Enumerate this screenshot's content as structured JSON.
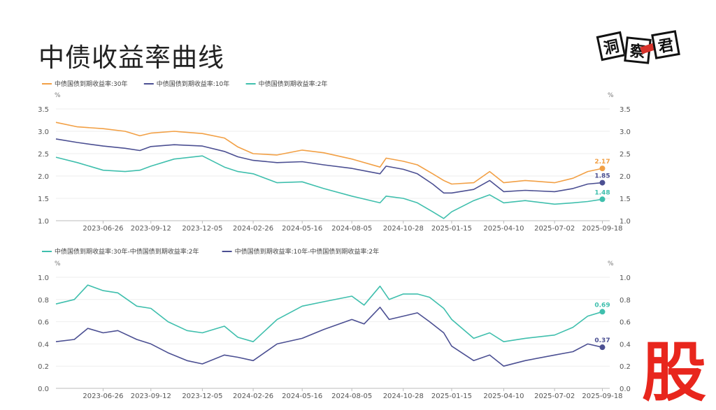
{
  "page": {
    "title": "中债收益率曲线",
    "logo_text": [
      "洞",
      "察",
      "君"
    ],
    "corner_mark": "股"
  },
  "colors": {
    "y30": "#f2a045",
    "y10": "#4b4f92",
    "y2": "#3fbfad",
    "spread30": "#3fbfad",
    "spread10": "#4b4f92"
  },
  "chart_data": [
    {
      "type": "line",
      "title": "",
      "unit_left": "%",
      "unit_right": "%",
      "ylim": [
        1.0,
        3.5
      ],
      "yticks": [
        "1.0",
        "1.5",
        "2.0",
        "2.5",
        "3.0",
        "3.5"
      ],
      "xlim": [
        "2023-04-10",
        "2025-09-30"
      ],
      "xticks": [
        "2023-06-26",
        "2023-09-12",
        "2023-12-05",
        "2024-02-26",
        "2024-05-16",
        "2024-08-05",
        "2024-10-28",
        "2025-01-15",
        "2025-04-10",
        "2025-07-02",
        "2025-09-18"
      ],
      "legend_position": "top-left",
      "grid": true,
      "series": [
        {
          "name": "中债国债到期收益率:30年",
          "color_key": "y30",
          "end_label": "2.17",
          "points": [
            [
              "2023-04-10",
              3.2
            ],
            [
              "2023-05-15",
              3.1
            ],
            [
              "2023-06-26",
              3.06
            ],
            [
              "2023-08-01",
              3.0
            ],
            [
              "2023-08-25",
              2.9
            ],
            [
              "2023-09-12",
              2.96
            ],
            [
              "2023-10-20",
              3.0
            ],
            [
              "2023-12-05",
              2.95
            ],
            [
              "2024-01-10",
              2.85
            ],
            [
              "2024-02-01",
              2.65
            ],
            [
              "2024-02-26",
              2.5
            ],
            [
              "2024-04-05",
              2.47
            ],
            [
              "2024-05-16",
              2.58
            ],
            [
              "2024-06-20",
              2.52
            ],
            [
              "2024-08-05",
              2.38
            ],
            [
              "2024-09-20",
              2.2
            ],
            [
              "2024-09-30",
              2.4
            ],
            [
              "2024-10-28",
              2.33
            ],
            [
              "2024-11-20",
              2.25
            ],
            [
              "2024-12-15",
              2.05
            ],
            [
              "2025-01-02",
              1.9
            ],
            [
              "2025-01-15",
              1.82
            ],
            [
              "2025-02-20",
              1.85
            ],
            [
              "2025-03-18",
              2.1
            ],
            [
              "2025-04-10",
              1.85
            ],
            [
              "2025-05-15",
              1.9
            ],
            [
              "2025-07-02",
              1.85
            ],
            [
              "2025-08-01",
              1.95
            ],
            [
              "2025-08-25",
              2.1
            ],
            [
              "2025-09-18",
              2.17
            ]
          ]
        },
        {
          "name": "中债国债到期收益率:10年",
          "color_key": "y10",
          "end_label": "1.85",
          "points": [
            [
              "2023-04-10",
              2.83
            ],
            [
              "2023-05-15",
              2.75
            ],
            [
              "2023-06-26",
              2.67
            ],
            [
              "2023-08-01",
              2.62
            ],
            [
              "2023-08-25",
              2.57
            ],
            [
              "2023-09-12",
              2.66
            ],
            [
              "2023-10-20",
              2.7
            ],
            [
              "2023-12-05",
              2.67
            ],
            [
              "2024-01-10",
              2.55
            ],
            [
              "2024-02-01",
              2.43
            ],
            [
              "2024-02-26",
              2.35
            ],
            [
              "2024-04-05",
              2.3
            ],
            [
              "2024-05-16",
              2.32
            ],
            [
              "2024-06-20",
              2.25
            ],
            [
              "2024-08-05",
              2.17
            ],
            [
              "2024-09-20",
              2.05
            ],
            [
              "2024-09-30",
              2.22
            ],
            [
              "2024-10-28",
              2.15
            ],
            [
              "2024-11-20",
              2.05
            ],
            [
              "2024-12-15",
              1.82
            ],
            [
              "2025-01-02",
              1.62
            ],
            [
              "2025-01-15",
              1.62
            ],
            [
              "2025-02-20",
              1.7
            ],
            [
              "2025-03-18",
              1.9
            ],
            [
              "2025-04-10",
              1.65
            ],
            [
              "2025-05-15",
              1.68
            ],
            [
              "2025-07-02",
              1.65
            ],
            [
              "2025-08-01",
              1.72
            ],
            [
              "2025-08-25",
              1.82
            ],
            [
              "2025-09-18",
              1.85
            ]
          ]
        },
        {
          "name": "中债国债到期收益率:2年",
          "color_key": "y2",
          "end_label": "1.48",
          "points": [
            [
              "2023-04-10",
              2.42
            ],
            [
              "2023-05-15",
              2.3
            ],
            [
              "2023-06-26",
              2.13
            ],
            [
              "2023-08-01",
              2.1
            ],
            [
              "2023-08-25",
              2.13
            ],
            [
              "2023-09-12",
              2.22
            ],
            [
              "2023-10-20",
              2.38
            ],
            [
              "2023-12-05",
              2.45
            ],
            [
              "2024-01-10",
              2.2
            ],
            [
              "2024-02-01",
              2.1
            ],
            [
              "2024-02-26",
              2.05
            ],
            [
              "2024-04-05",
              1.85
            ],
            [
              "2024-05-16",
              1.87
            ],
            [
              "2024-06-20",
              1.72
            ],
            [
              "2024-08-05",
              1.55
            ],
            [
              "2024-09-20",
              1.4
            ],
            [
              "2024-09-30",
              1.55
            ],
            [
              "2024-10-28",
              1.5
            ],
            [
              "2024-11-20",
              1.4
            ],
            [
              "2024-12-15",
              1.2
            ],
            [
              "2025-01-02",
              1.05
            ],
            [
              "2025-01-15",
              1.2
            ],
            [
              "2025-02-20",
              1.45
            ],
            [
              "2025-03-18",
              1.58
            ],
            [
              "2025-04-10",
              1.4
            ],
            [
              "2025-05-15",
              1.45
            ],
            [
              "2025-07-02",
              1.37
            ],
            [
              "2025-08-01",
              1.4
            ],
            [
              "2025-08-25",
              1.43
            ],
            [
              "2025-09-18",
              1.48
            ]
          ]
        }
      ]
    },
    {
      "type": "line",
      "title": "",
      "unit_left": "%",
      "unit_right": "%",
      "ylim": [
        0.0,
        1.0
      ],
      "yticks": [
        "0.0",
        "0.2",
        "0.4",
        "0.6",
        "0.8",
        "1.0"
      ],
      "xlim": [
        "2023-04-10",
        "2025-09-30"
      ],
      "xticks": [
        "2023-06-26",
        "2023-09-12",
        "2023-12-05",
        "2024-02-26",
        "2024-05-16",
        "2024-08-05",
        "2024-10-28",
        "2025-01-15",
        "2025-04-10",
        "2025-07-02",
        "2025-09-18"
      ],
      "legend_position": "top-left",
      "grid": true,
      "series": [
        {
          "name": "中债国债到期收益率:30年-中债国债到期收益率:2年",
          "color_key": "spread30",
          "end_label": "0.69",
          "points": [
            [
              "2023-04-10",
              0.76
            ],
            [
              "2023-05-10",
              0.8
            ],
            [
              "2023-06-01",
              0.93
            ],
            [
              "2023-06-26",
              0.88
            ],
            [
              "2023-07-20",
              0.86
            ],
            [
              "2023-08-20",
              0.74
            ],
            [
              "2023-09-12",
              0.72
            ],
            [
              "2023-10-10",
              0.6
            ],
            [
              "2023-11-10",
              0.52
            ],
            [
              "2023-12-05",
              0.5
            ],
            [
              "2024-01-10",
              0.56
            ],
            [
              "2024-02-01",
              0.46
            ],
            [
              "2024-02-26",
              0.42
            ],
            [
              "2024-04-05",
              0.62
            ],
            [
              "2024-05-16",
              0.74
            ],
            [
              "2024-06-20",
              0.78
            ],
            [
              "2024-08-05",
              0.83
            ],
            [
              "2024-08-25",
              0.75
            ],
            [
              "2024-09-20",
              0.92
            ],
            [
              "2024-10-05",
              0.8
            ],
            [
              "2024-10-28",
              0.85
            ],
            [
              "2024-11-20",
              0.85
            ],
            [
              "2024-12-10",
              0.82
            ],
            [
              "2025-01-02",
              0.72
            ],
            [
              "2025-01-15",
              0.62
            ],
            [
              "2025-02-20",
              0.45
            ],
            [
              "2025-03-18",
              0.5
            ],
            [
              "2025-04-10",
              0.42
            ],
            [
              "2025-05-15",
              0.45
            ],
            [
              "2025-07-02",
              0.48
            ],
            [
              "2025-08-01",
              0.55
            ],
            [
              "2025-08-25",
              0.65
            ],
            [
              "2025-09-18",
              0.69
            ]
          ]
        },
        {
          "name": "中债国债到期收益率:10年-中债国债到期收益率:2年",
          "color_key": "spread10",
          "end_label": "0.37",
          "points": [
            [
              "2023-04-10",
              0.42
            ],
            [
              "2023-05-10",
              0.44
            ],
            [
              "2023-06-01",
              0.54
            ],
            [
              "2023-06-26",
              0.5
            ],
            [
              "2023-07-20",
              0.52
            ],
            [
              "2023-08-20",
              0.44
            ],
            [
              "2023-09-12",
              0.4
            ],
            [
              "2023-10-10",
              0.32
            ],
            [
              "2023-11-10",
              0.25
            ],
            [
              "2023-12-05",
              0.22
            ],
            [
              "2024-01-10",
              0.3
            ],
            [
              "2024-02-01",
              0.28
            ],
            [
              "2024-02-26",
              0.25
            ],
            [
              "2024-04-05",
              0.4
            ],
            [
              "2024-05-16",
              0.45
            ],
            [
              "2024-06-20",
              0.53
            ],
            [
              "2024-08-05",
              0.62
            ],
            [
              "2024-08-25",
              0.58
            ],
            [
              "2024-09-20",
              0.73
            ],
            [
              "2024-10-05",
              0.62
            ],
            [
              "2024-10-28",
              0.65
            ],
            [
              "2024-11-20",
              0.68
            ],
            [
              "2024-12-10",
              0.6
            ],
            [
              "2025-01-02",
              0.5
            ],
            [
              "2025-01-15",
              0.38
            ],
            [
              "2025-02-20",
              0.25
            ],
            [
              "2025-03-18",
              0.3
            ],
            [
              "2025-04-10",
              0.2
            ],
            [
              "2025-05-15",
              0.25
            ],
            [
              "2025-07-02",
              0.3
            ],
            [
              "2025-08-01",
              0.33
            ],
            [
              "2025-08-25",
              0.4
            ],
            [
              "2025-09-18",
              0.37
            ]
          ]
        }
      ]
    }
  ]
}
